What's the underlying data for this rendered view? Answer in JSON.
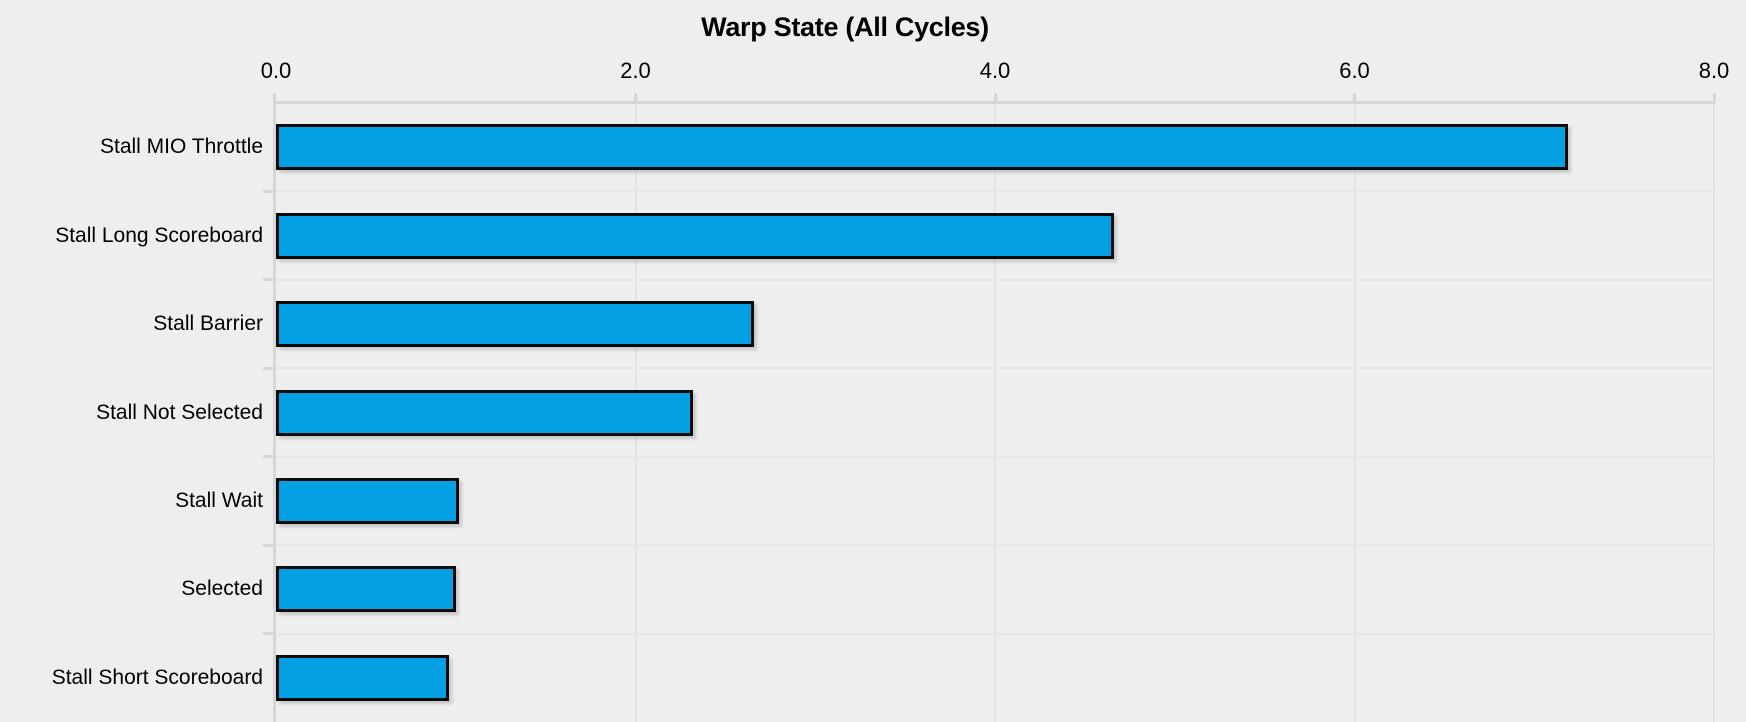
{
  "title": "Warp State (All Cycles)",
  "colors": {
    "background": "#eeeeee",
    "bar_fill": "#04a0e4",
    "bar_border": "#0a0a0a",
    "axis_line": "#d6d6d6",
    "gridline": "#e3e3e4",
    "text": "#000000"
  },
  "chart_data": {
    "type": "bar",
    "orientation": "horizontal",
    "title": "Warp State (All Cycles)",
    "categories": [
      "Stall MIO Throttle",
      "Stall Long Scoreboard",
      "Stall Barrier",
      "Stall Not Selected",
      "Stall Wait",
      "Selected",
      "Stall Short Scoreboard"
    ],
    "values": [
      7.19,
      4.66,
      2.66,
      2.32,
      1.02,
      1.0,
      0.96
    ],
    "xlabel": "",
    "ylabel": "",
    "xlim": [
      0,
      8
    ],
    "x_tick_labels": [
      "0.0",
      "2.0",
      "4.0",
      "6.0",
      "8.0"
    ],
    "x_tick_values": [
      0,
      2,
      4,
      6,
      8
    ],
    "axis_position": "top",
    "grid": true,
    "legend": false
  }
}
